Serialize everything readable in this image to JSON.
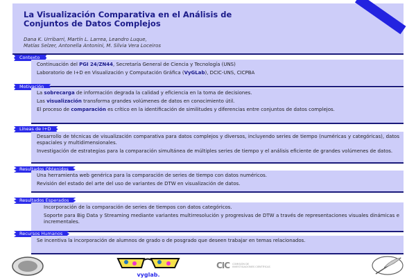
{
  "header": {
    "title_line1": "La Visualización Comparativa en el Análisis de",
    "title_line2": "Conjuntos de Datos Complejos",
    "authors_line1": "Dana K. Urribarri, Martín L. Larrea, Leandro Luque,",
    "authors_line2": "Matías Selzer, Antonella Antonini, M. Silvia Vera Loceiros"
  },
  "sections": [
    {
      "label": "Contexto"
    },
    {
      "label": "Motivación"
    },
    {
      "label": "Líneas de I+D"
    },
    {
      "label": "Resultados Obtenidos"
    },
    {
      "label": "Resultados Esperados"
    },
    {
      "label": "Recursos Humanos"
    }
  ],
  "contexto": {
    "p1_pre": "Continuación del ",
    "p1_hl": "PGI 24/ZN44",
    "p1_post": ", Secretaría General de Ciencia y Tecnología (UNS)",
    "p2_pre": "Laboratorio de I+D en Visualización y Computación Gráfica (",
    "p2_hl": "VyGLab",
    "p2_post": "), DCIC-UNS, CICPBA"
  },
  "motivacion": {
    "p1_pre": "La ",
    "p1_hl": "sobrecarga",
    "p1_post": " de información degrada la calidad y eficiencia en la toma de decisiones.",
    "p2_pre": "Las ",
    "p2_hl": "visualización",
    "p2_post": " transforma grandes volúmenes de datos en conocimiento útil.",
    "p3_pre": "El proceso de ",
    "p3_hl": "comparación",
    "p3_post": " es crítico en la identificación de similitudes y diferencias entre conjuntos de datos complejos."
  },
  "lineas": {
    "p1": "Desarrollo de técnicas de visualización comparativa para datos complejos y diversos, incluyendo series de tiempo (numéricas y categóricas), datos espaciales y multidimensionales.",
    "p2": "Investigación de estrategias para la comparación simultánea de múltiples series de tiempo y el análisis eficiente de grandes volúmenes de datos."
  },
  "obtenidos": {
    "p1": "Una herramienta web genérica para la comparación de series de tiempo con datos numéricos.",
    "p2": "Revisión del estado del arte del uso de variantes de DTW en visualización de datos."
  },
  "esperados": {
    "p1": "Incorporación de la comparación de series de tiempos con datos categóricos.",
    "p2": "Soporte para Big Data y Streaming mediante variantes multirresolución y progresivas de DTW a través de representaciones visuales dinámicas e incrementales."
  },
  "recursos": {
    "p1": "Se incentiva la incorporación de alumnos de grado o de posgrado que deseen trabajar en temas relacionados."
  },
  "logos": {
    "vyglab": "vyglab.",
    "cic_abbr": "CIC",
    "cic_line1": "COMISIÓN DE",
    "cic_line2": "INVESTIGACIONES CIENTÍFICAS"
  },
  "colors": {
    "accent": "#2b2bea",
    "box": "#cdcdf9",
    "dark": "#1a1a7a"
  }
}
